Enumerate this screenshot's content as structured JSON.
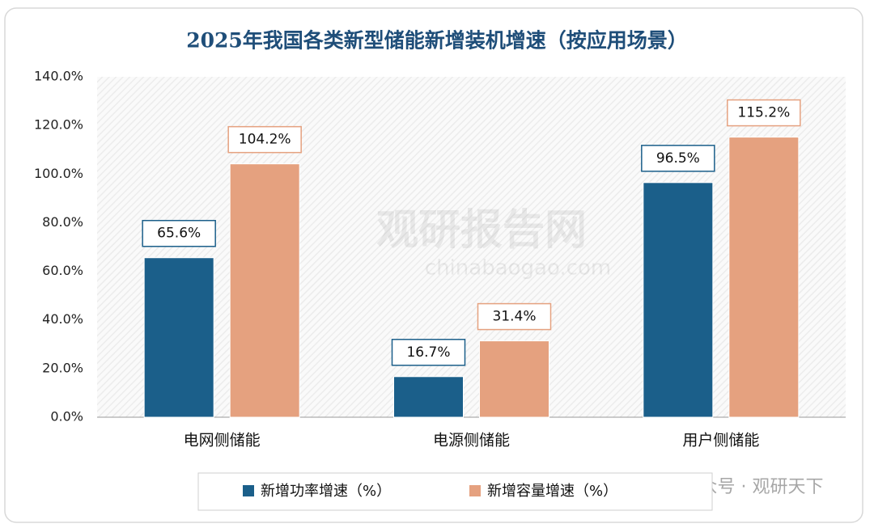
{
  "chart_data": {
    "type": "bar",
    "title": "2025年我国各类新型储能新增装机增速（按应用场景）",
    "categories": [
      "电网侧储能",
      "电源侧储能",
      "用户侧储能"
    ],
    "series": [
      {
        "name": "新增功率增速（%）",
        "color": "#1b5f8a",
        "values": [
          65.6,
          16.7,
          96.5
        ],
        "value_labels": [
          "65.6%",
          "16.7%",
          "96.5%"
        ]
      },
      {
        "name": "新增容量增速（%）",
        "color": "#e5a17f",
        "values": [
          104.2,
          31.4,
          115.2
        ],
        "value_labels": [
          "104.2%",
          "31.4%",
          "115.2%"
        ]
      }
    ],
    "ylim": [
      0,
      140
    ],
    "yticks": [
      {
        "value": 0,
        "label": "0.0%"
      },
      {
        "value": 20,
        "label": "20.0%"
      },
      {
        "value": 40,
        "label": "40.0%"
      },
      {
        "value": 60,
        "label": "60.0%"
      },
      {
        "value": 80,
        "label": "80.0%"
      },
      {
        "value": 100,
        "label": "100.0%"
      },
      {
        "value": 120,
        "label": "120.0%"
      },
      {
        "value": 140,
        "label": "140.0%"
      }
    ],
    "watermarks": [
      "观研报告网",
      "chinabaogao.com",
      "公众号 · 观研天下"
    ]
  }
}
